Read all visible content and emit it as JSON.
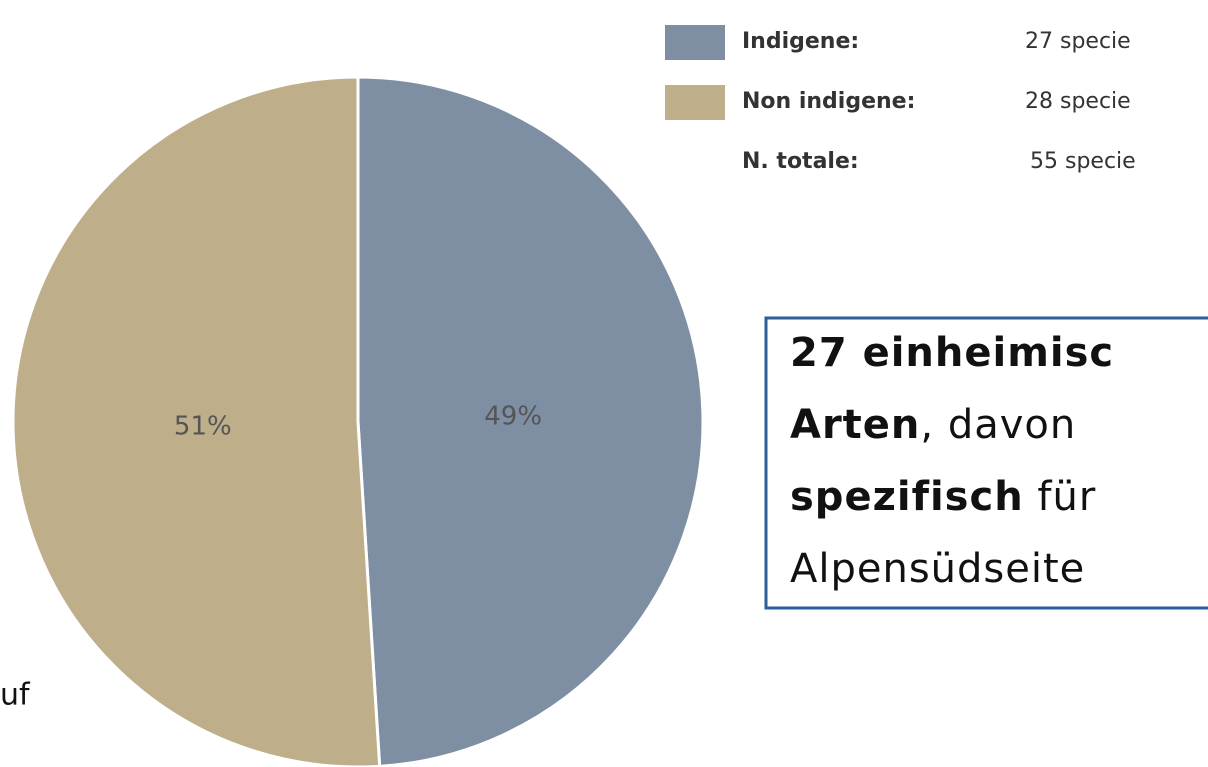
{
  "chart_data": {
    "type": "pie",
    "categories": [
      "Indigene",
      "Non indigene"
    ],
    "values": [
      49,
      51
    ],
    "value_labels": [
      "49%",
      "51%"
    ],
    "colors": [
      "#7f8fa3",
      "#bfae8a"
    ],
    "legend": [
      {
        "label": "Indigene:",
        "text": "27 specie"
      },
      {
        "label": "Non indigene:",
        "text": "28 specie"
      },
      {
        "label": "N. totale:",
        "text": "55 specie"
      }
    ]
  },
  "textbox": {
    "lines": [
      [
        {
          "text": "27 einheimisc",
          "bold": true
        }
      ],
      [
        {
          "text": "Arten",
          "bold": true
        },
        {
          "text": ", davon",
          "bold": false
        }
      ],
      [
        {
          "text": "spezifisch",
          "bold": true
        },
        {
          "text": " für",
          "bold": false
        }
      ],
      [
        {
          "text": "Alpensüdseite",
          "bold": false
        }
      ]
    ]
  },
  "side_text": "uf"
}
